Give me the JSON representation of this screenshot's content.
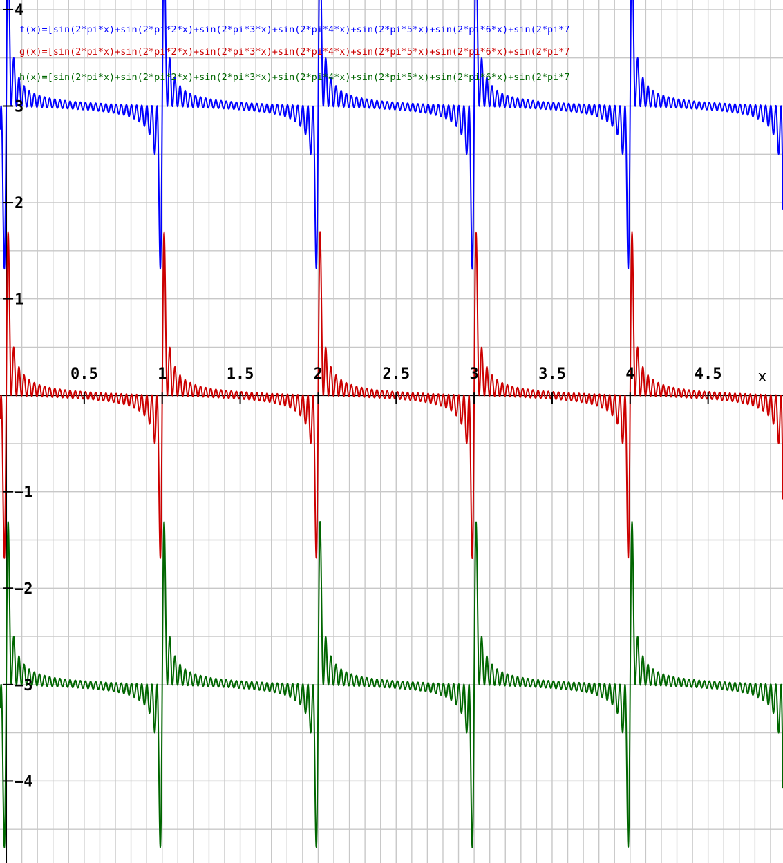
{
  "chart_data": {
    "type": "line",
    "title": "",
    "xlabel": "x",
    "ylabel": "",
    "xlim": [
      -0.04,
      4.98
    ],
    "ylim": [
      -4.85,
      4.1
    ],
    "x_ticks": [
      0.5,
      1,
      1.5,
      2,
      2.5,
      3,
      3.5,
      4,
      4.5
    ],
    "x_tick_labels": [
      "0.5",
      "1",
      "1.5",
      "2",
      "2.5",
      "3",
      "3.5",
      "4",
      "4.5"
    ],
    "y_ticks": [
      4,
      3,
      2,
      1,
      -1,
      -2,
      -3,
      -4
    ],
    "y_tick_labels": [
      "4",
      "3",
      "2",
      "1",
      "−1",
      "−2",
      "−3",
      "−4"
    ],
    "grid": true,
    "grid_step": {
      "x": 0.1,
      "y": 0.5
    },
    "legend_position": "top-left",
    "series": [
      {
        "name": "f(x)=[sin(2*pi*x)+sin(2*pi*2*x)+sin(2*pi*3*x)+sin(2*pi*4*x)+sin(2*pi*5*x)+sin(2*pi*6*x)+sin(2*pi*7",
        "color": "#0000ff",
        "harmonics": 30,
        "scale": 0.0765,
        "offset": 3
      },
      {
        "name": "g(x)=[sin(2*pi*x)+sin(2*pi*2*x)+sin(2*pi*3*x)+sin(2*pi*4*x)+sin(2*pi*5*x)+sin(2*pi*6*x)+sin(2*pi*7",
        "color": "#cc0000",
        "harmonics": 30,
        "scale": 0.0765,
        "offset": 0
      },
      {
        "name": "h(x)=[sin(2*pi*x)+sin(2*pi*2*x)+sin(2*pi*3*x)+sin(2*pi*4*x)+sin(2*pi*5*x)+sin(2*pi*6*x)+sin(2*pi*7",
        "color": "#006600",
        "harmonics": 30,
        "scale": 0.0765,
        "offset": -3
      }
    ]
  }
}
